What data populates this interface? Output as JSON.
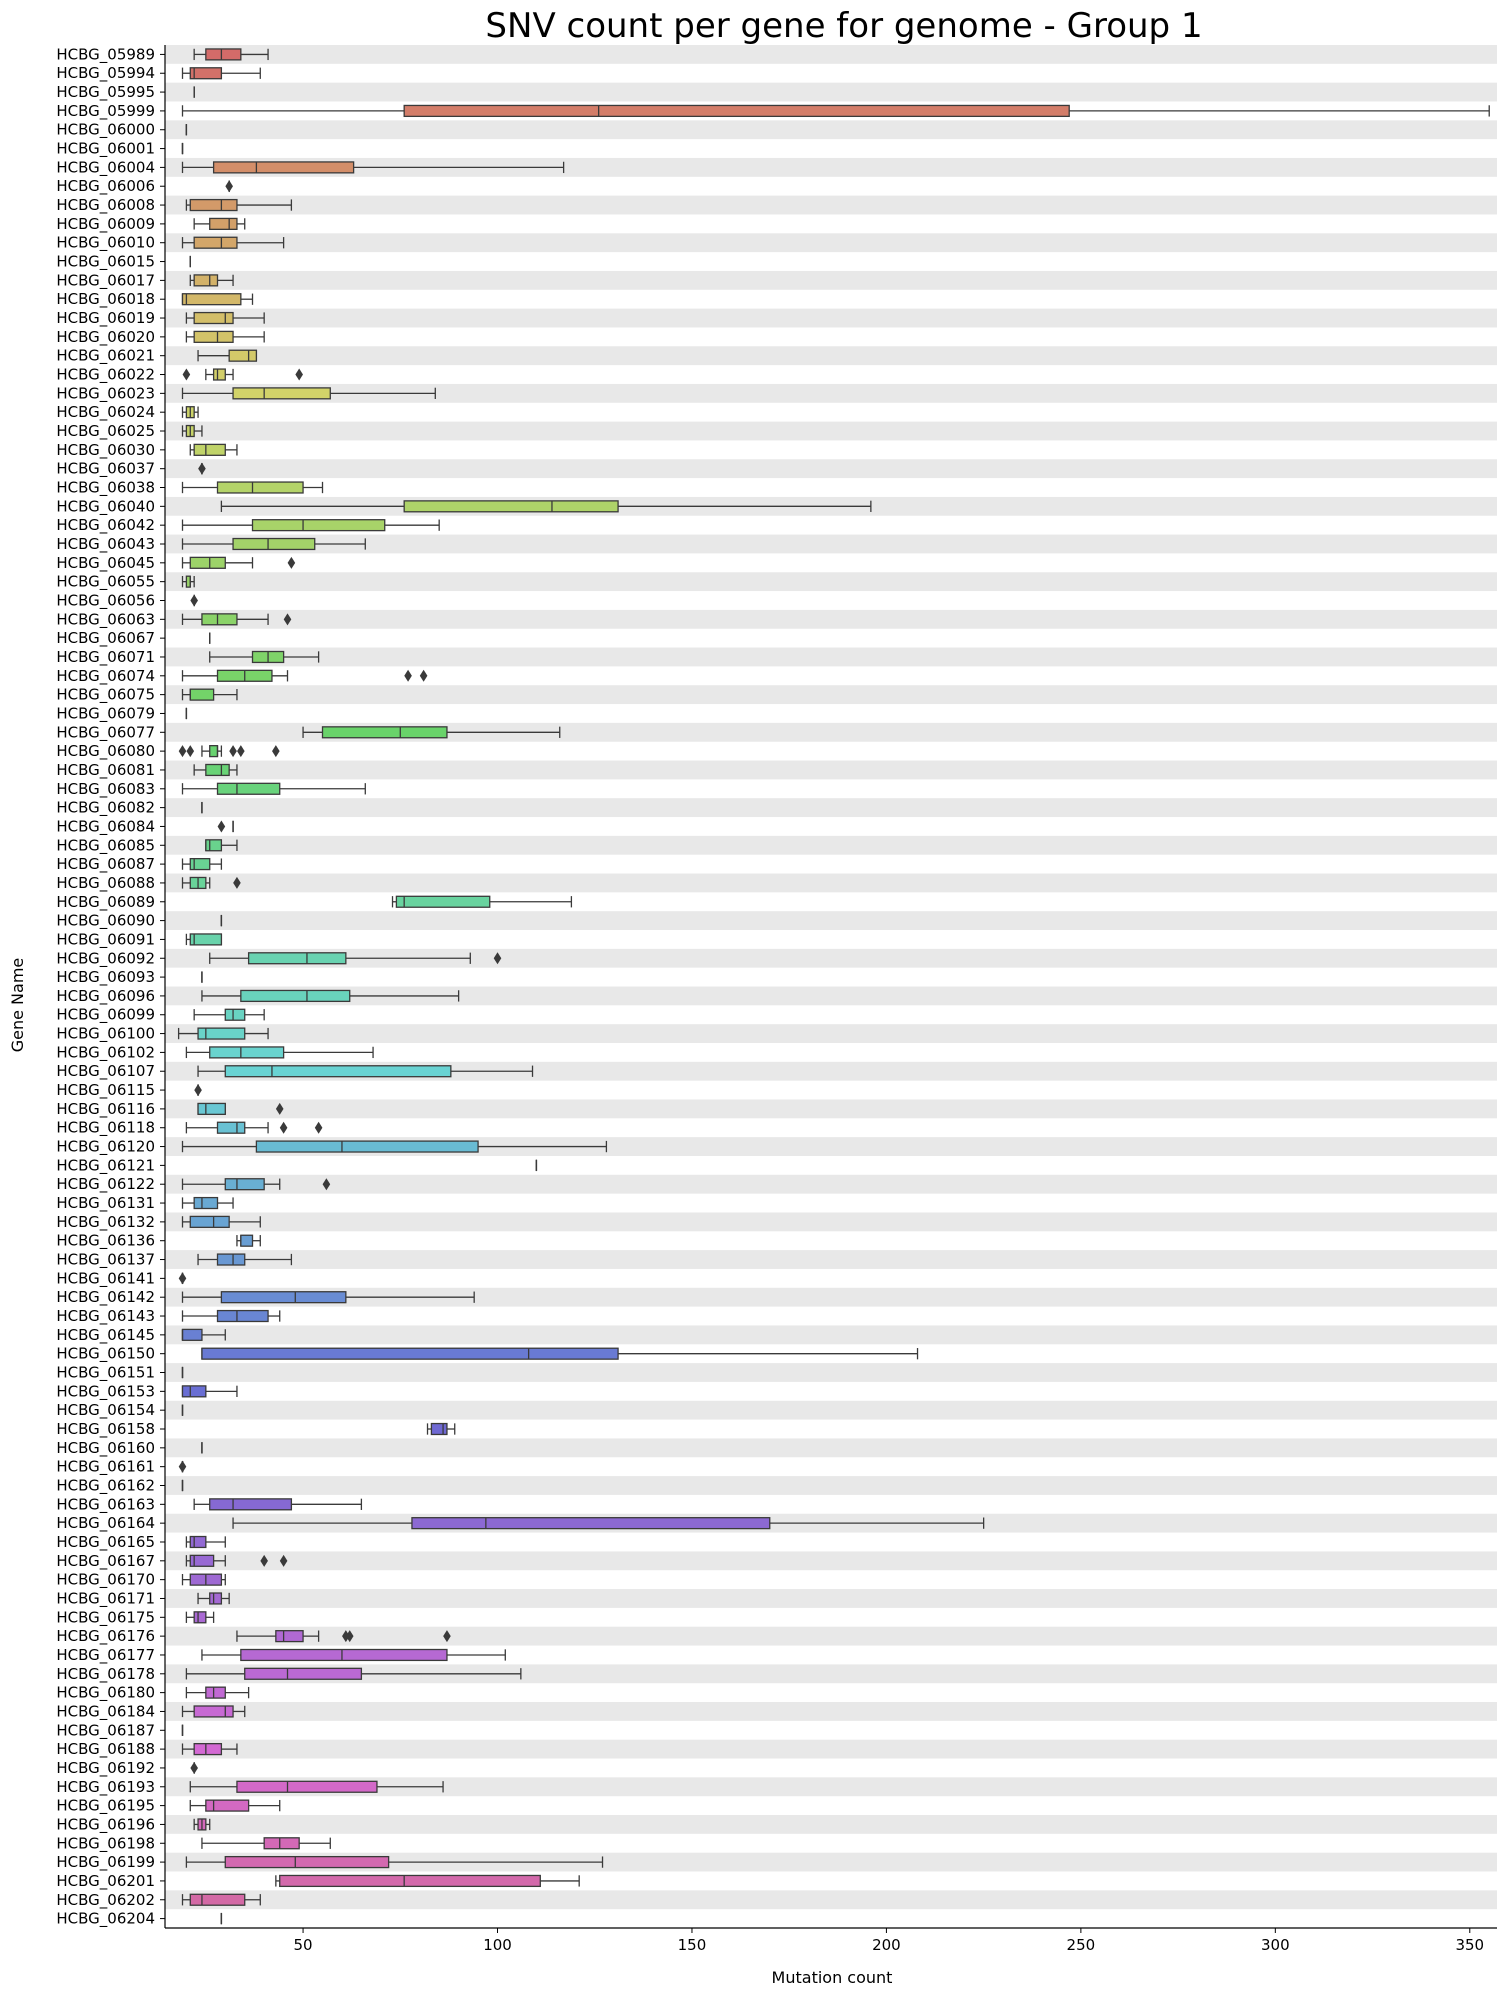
{
  "chart_data": {
    "type": "boxplot",
    "orientation": "horizontal",
    "title": "SNV count per gene for genome - Group 1",
    "xlabel": "Mutation count",
    "ylabel": "Gene Name",
    "xlim": [
      14.5,
      357
    ],
    "xticks": [
      50,
      100,
      150,
      200,
      250,
      300,
      350
    ],
    "grid": false,
    "band_color": "#e8e8e8",
    "colors": {
      "palette_start": "#ea8b89",
      "palette_end": "#e38ab7",
      "line": "#3a3a3a"
    },
    "categories": [
      "HCBG_05989",
      "HCBG_05994",
      "HCBG_05995",
      "HCBG_05999",
      "HCBG_06000",
      "HCBG_06001",
      "HCBG_06004",
      "HCBG_06006",
      "HCBG_06008",
      "HCBG_06009",
      "HCBG_06010",
      "HCBG_06015",
      "HCBG_06017",
      "HCBG_06018",
      "HCBG_06019",
      "HCBG_06020",
      "HCBG_06021",
      "HCBG_06022",
      "HCBG_06023",
      "HCBG_06024",
      "HCBG_06025",
      "HCBG_06030",
      "HCBG_06037",
      "HCBG_06038",
      "HCBG_06040",
      "HCBG_06042",
      "HCBG_06043",
      "HCBG_06045",
      "HCBG_06055",
      "HCBG_06056",
      "HCBG_06063",
      "HCBG_06067",
      "HCBG_06071",
      "HCBG_06074",
      "HCBG_06075",
      "HCBG_06079",
      "HCBG_06077",
      "HCBG_06080",
      "HCBG_06081",
      "HCBG_06083",
      "HCBG_06082",
      "HCBG_06084",
      "HCBG_06085",
      "HCBG_06087",
      "HCBG_06088",
      "HCBG_06089",
      "HCBG_06090",
      "HCBG_06091",
      "HCBG_06092",
      "HCBG_06093",
      "HCBG_06096",
      "HCBG_06099",
      "HCBG_06100",
      "HCBG_06102",
      "HCBG_06107",
      "HCBG_06115",
      "HCBG_06116",
      "HCBG_06118",
      "HCBG_06120",
      "HCBG_06121",
      "HCBG_06122",
      "HCBG_06131",
      "HCBG_06132",
      "HCBG_06136",
      "HCBG_06137",
      "HCBG_06141",
      "HCBG_06142",
      "HCBG_06143",
      "HCBG_06145",
      "HCBG_06150",
      "HCBG_06151",
      "HCBG_06153",
      "HCBG_06154",
      "HCBG_06158",
      "HCBG_06160",
      "HCBG_06161",
      "HCBG_06162",
      "HCBG_06163",
      "HCBG_06164",
      "HCBG_06165",
      "HCBG_06167",
      "HCBG_06170",
      "HCBG_06171",
      "HCBG_06175",
      "HCBG_06176",
      "HCBG_06177",
      "HCBG_06178",
      "HCBG_06180",
      "HCBG_06184",
      "HCBG_06187",
      "HCBG_06188",
      "HCBG_06192",
      "HCBG_06193",
      "HCBG_06195",
      "HCBG_06196",
      "HCBG_06198",
      "HCBG_06199",
      "HCBG_06201",
      "HCBG_06202",
      "HCBG_06204"
    ],
    "boxes": [
      [
        22,
        25,
        29,
        34,
        41,
        []
      ],
      [
        19,
        21,
        22,
        29,
        39,
        []
      ],
      [
        22,
        22,
        22,
        22,
        22,
        []
      ],
      [
        19,
        76,
        126,
        247,
        355,
        []
      ],
      [
        20,
        20,
        20,
        20,
        20,
        []
      ],
      [
        19,
        19,
        19,
        19,
        19,
        []
      ],
      [
        19,
        27,
        38,
        63,
        117,
        []
      ],
      [
        31,
        31,
        31,
        31,
        31,
        [
          31
        ]
      ],
      [
        20,
        21,
        29,
        33,
        47,
        []
      ],
      [
        22,
        26,
        31,
        33,
        35,
        []
      ],
      [
        19,
        22,
        29,
        33,
        45,
        []
      ],
      [
        21,
        21,
        21,
        21,
        21,
        []
      ],
      [
        21,
        22,
        26,
        28,
        32,
        []
      ],
      [
        19,
        19,
        20,
        34,
        37,
        []
      ],
      [
        20,
        22,
        30,
        32,
        40,
        []
      ],
      [
        20,
        22,
        28,
        32,
        40,
        []
      ],
      [
        23,
        31,
        36,
        38,
        38,
        []
      ],
      [
        25,
        27,
        28,
        30,
        32,
        [
          20,
          49
        ]
      ],
      [
        19,
        32,
        40,
        57,
        84,
        []
      ],
      [
        19,
        20,
        21,
        22,
        23,
        []
      ],
      [
        19,
        20,
        21,
        22,
        24,
        []
      ],
      [
        21,
        22,
        25,
        30,
        33,
        []
      ],
      [
        24,
        24,
        24,
        24,
        24,
        [
          24
        ]
      ],
      [
        19,
        28,
        37,
        50,
        55,
        []
      ],
      [
        29,
        76,
        114,
        131,
        196,
        []
      ],
      [
        19,
        37,
        50,
        71,
        85,
        []
      ],
      [
        19,
        32,
        41,
        53,
        66,
        []
      ],
      [
        19,
        21,
        26,
        30,
        37,
        [
          47
        ]
      ],
      [
        19,
        20,
        21,
        21,
        22,
        []
      ],
      [
        22,
        22,
        22,
        22,
        22,
        [
          22
        ]
      ],
      [
        19,
        24,
        28,
        33,
        41,
        [
          46
        ]
      ],
      [
        26,
        26,
        26,
        26,
        26,
        []
      ],
      [
        26,
        37,
        41,
        45,
        54,
        []
      ],
      [
        19,
        28,
        35,
        42,
        46,
        [
          77,
          81
        ]
      ],
      [
        19,
        21,
        21,
        27,
        33,
        []
      ],
      [
        20,
        20,
        20,
        20,
        20,
        []
      ],
      [
        50,
        55,
        75,
        87,
        116,
        []
      ],
      [
        24,
        26,
        28,
        28,
        29,
        [
          19,
          21,
          32,
          34,
          43
        ]
      ],
      [
        22,
        25,
        29,
        31,
        33,
        []
      ],
      [
        19,
        28,
        33,
        44,
        66,
        []
      ],
      [
        24,
        24,
        24,
        24,
        24,
        []
      ],
      [
        32,
        32,
        32,
        32,
        32,
        [
          29
        ]
      ],
      [
        25,
        25,
        26,
        29,
        33,
        []
      ],
      [
        19,
        21,
        22,
        26,
        29,
        []
      ],
      [
        19,
        21,
        23,
        25,
        26,
        [
          33
        ]
      ],
      [
        73,
        74,
        76,
        98,
        119,
        []
      ],
      [
        29,
        29,
        29,
        29,
        29,
        []
      ],
      [
        20,
        21,
        22,
        29,
        29,
        []
      ],
      [
        26,
        36,
        51,
        61,
        93,
        [
          100
        ]
      ],
      [
        24,
        24,
        24,
        24,
        24,
        []
      ],
      [
        24,
        34,
        51,
        62,
        90,
        []
      ],
      [
        22,
        30,
        32,
        35,
        40,
        []
      ],
      [
        18,
        23,
        25,
        35,
        41,
        []
      ],
      [
        20,
        26,
        34,
        45,
        68,
        []
      ],
      [
        23,
        30,
        42,
        88,
        109,
        []
      ],
      [
        23,
        23,
        23,
        23,
        23,
        [
          23
        ]
      ],
      [
        23,
        23,
        25,
        30,
        30,
        [
          44
        ]
      ],
      [
        20,
        28,
        33,
        35,
        41,
        [
          45,
          54
        ]
      ],
      [
        19,
        38,
        60,
        95,
        128,
        []
      ],
      [
        110,
        110,
        110,
        110,
        110,
        []
      ],
      [
        19,
        30,
        33,
        40,
        44,
        [
          56
        ]
      ],
      [
        19,
        22,
        24,
        28,
        32,
        []
      ],
      [
        19,
        21,
        27,
        31,
        39,
        []
      ],
      [
        33,
        34,
        34,
        37,
        39,
        []
      ],
      [
        23,
        28,
        32,
        35,
        47,
        []
      ],
      [
        19,
        19,
        19,
        19,
        19,
        [
          19
        ]
      ],
      [
        19,
        29,
        48,
        61,
        94,
        []
      ],
      [
        19,
        28,
        33,
        41,
        44,
        []
      ],
      [
        19,
        19,
        19,
        24,
        30,
        []
      ],
      [
        24,
        24,
        108,
        131,
        208,
        []
      ],
      [
        19,
        19,
        19,
        19,
        19,
        []
      ],
      [
        19,
        19,
        21,
        25,
        33,
        []
      ],
      [
        19,
        19,
        19,
        19,
        19,
        []
      ],
      [
        82,
        83,
        86,
        87,
        89,
        []
      ],
      [
        24,
        24,
        24,
        24,
        24,
        []
      ],
      [
        19,
        19,
        19,
        19,
        19,
        [
          19
        ]
      ],
      [
        19,
        19,
        19,
        19,
        19,
        []
      ],
      [
        22,
        26,
        32,
        47,
        65,
        []
      ],
      [
        32,
        78,
        97,
        170,
        225,
        []
      ],
      [
        20,
        21,
        22,
        25,
        30,
        []
      ],
      [
        20,
        21,
        22,
        27,
        30,
        [
          40,
          45
        ]
      ],
      [
        19,
        21,
        25,
        29,
        30,
        []
      ],
      [
        23,
        26,
        27,
        29,
        31,
        []
      ],
      [
        20,
        22,
        23,
        25,
        27,
        []
      ],
      [
        33,
        43,
        45,
        50,
        54,
        [
          61,
          62,
          87
        ]
      ],
      [
        24,
        34,
        60,
        87,
        102,
        []
      ],
      [
        20,
        35,
        46,
        65,
        106,
        []
      ],
      [
        20,
        25,
        27,
        30,
        36,
        []
      ],
      [
        19,
        22,
        30,
        32,
        35,
        []
      ],
      [
        19,
        19,
        19,
        19,
        19,
        []
      ],
      [
        19,
        22,
        25,
        29,
        33,
        []
      ],
      [
        22,
        22,
        22,
        22,
        22,
        [
          22
        ]
      ],
      [
        21,
        33,
        46,
        69,
        86,
        []
      ],
      [
        21,
        25,
        27,
        36,
        44,
        []
      ],
      [
        22,
        23,
        24,
        25,
        26,
        []
      ],
      [
        24,
        40,
        44,
        49,
        57,
        []
      ],
      [
        20,
        30,
        48,
        72,
        127,
        []
      ],
      [
        43,
        44,
        76,
        111,
        121,
        []
      ],
      [
        19,
        21,
        24,
        35,
        39,
        []
      ],
      [
        29,
        29,
        29,
        29,
        29,
        []
      ]
    ]
  }
}
